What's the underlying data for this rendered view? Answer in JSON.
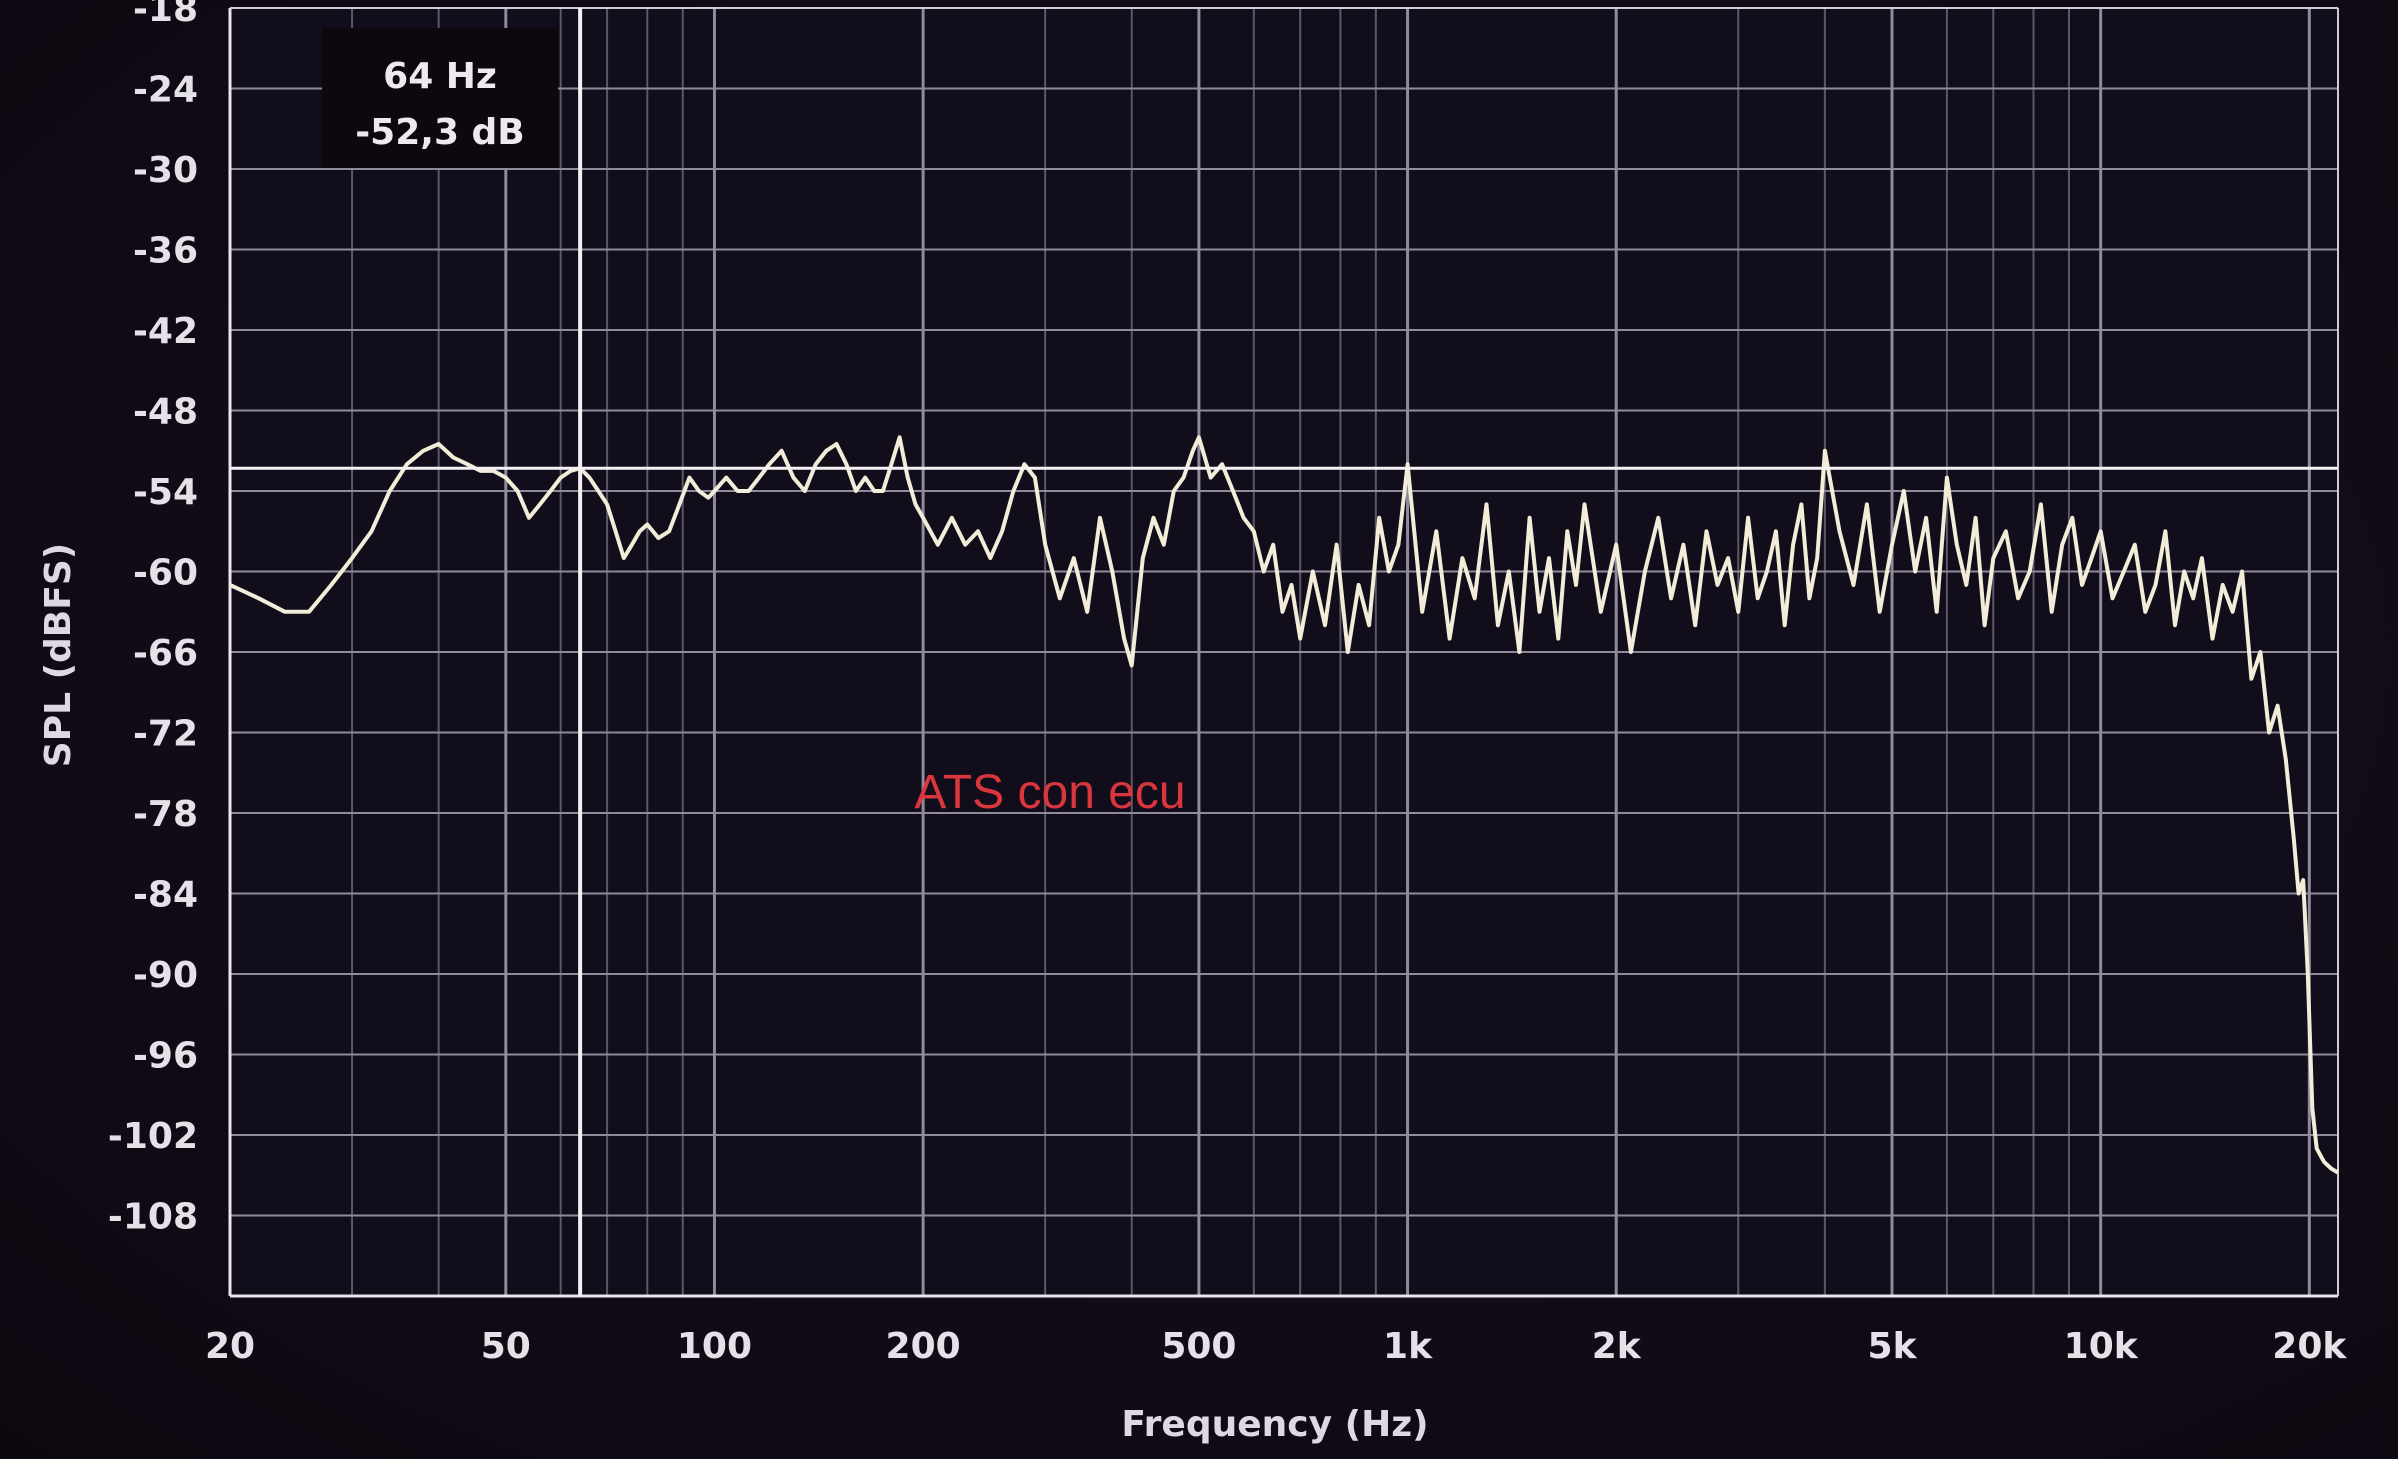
{
  "chart_data": {
    "type": "line",
    "xscale": "log",
    "xlabel": "Frequency (Hz)",
    "ylabel": "SPL (dBFS)",
    "xlim": [
      20,
      22000
    ],
    "ylim": [
      -114,
      -18
    ],
    "grid": true,
    "x_ticks": [
      {
        "value": 20,
        "label": "20"
      },
      {
        "value": 50,
        "label": "50"
      },
      {
        "value": 100,
        "label": "100"
      },
      {
        "value": 200,
        "label": "200"
      },
      {
        "value": 500,
        "label": "500"
      },
      {
        "value": 1000,
        "label": "1k"
      },
      {
        "value": 2000,
        "label": "2k"
      },
      {
        "value": 5000,
        "label": "5k"
      },
      {
        "value": 10000,
        "label": "10k"
      },
      {
        "value": 20000,
        "label": "20k"
      }
    ],
    "y_ticks": [
      -18,
      -24,
      -30,
      -36,
      -42,
      -48,
      -54,
      -60,
      -66,
      -72,
      -78,
      -84,
      -90,
      -96,
      -102,
      -108
    ],
    "annotation": "ATS con ecu",
    "cursor": {
      "freq": 64,
      "freq_label": "64 Hz",
      "level": -52.3,
      "level_label": "-52,3 dB"
    },
    "series": [
      {
        "x": [
          20,
          22,
          24,
          26,
          28,
          30,
          32,
          34,
          36,
          38,
          40,
          42,
          44,
          46,
          48,
          50,
          52,
          54,
          56,
          58,
          60,
          62,
          64,
          66,
          68,
          70,
          72,
          74,
          76,
          78,
          80,
          83,
          86,
          89,
          92,
          95,
          98,
          100,
          104,
          108,
          112,
          116,
          120,
          125,
          130,
          135,
          140,
          145,
          150,
          155,
          160,
          165,
          170,
          175,
          180,
          185,
          190,
          195,
          200,
          210,
          220,
          230,
          240,
          250,
          260,
          270,
          280,
          290,
          300,
          315,
          330,
          345,
          360,
          375,
          390,
          400,
          415,
          430,
          445,
          460,
          475,
          490,
          500,
          520,
          540,
          560,
          580,
          600,
          620,
          640,
          660,
          680,
          700,
          730,
          760,
          790,
          820,
          850,
          880,
          910,
          940,
          970,
          1000,
          1050,
          1100,
          1150,
          1200,
          1250,
          1300,
          1350,
          1400,
          1450,
          1500,
          1550,
          1600,
          1650,
          1700,
          1750,
          1800,
          1900,
          2000,
          2100,
          2200,
          2300,
          2400,
          2500,
          2600,
          2700,
          2800,
          2900,
          3000,
          3100,
          3200,
          3300,
          3400,
          3500,
          3600,
          3700,
          3800,
          3900,
          4000,
          4200,
          4400,
          4600,
          4800,
          5000,
          5200,
          5400,
          5600,
          5800,
          6000,
          6200,
          6400,
          6600,
          6800,
          7000,
          7300,
          7600,
          7900,
          8200,
          8500,
          8800,
          9100,
          9400,
          9700,
          10000,
          10400,
          10800,
          11200,
          11600,
          12000,
          12400,
          12800,
          13200,
          13600,
          14000,
          14500,
          15000,
          15500,
          16000,
          16500,
          17000,
          17500,
          18000,
          18500,
          19000,
          19300,
          19600,
          19900,
          20200,
          20500,
          21000,
          21500,
          22000
        ],
        "y": [
          -61,
          -62,
          -63,
          -63,
          -61,
          -59,
          -57,
          -54,
          -52,
          -51,
          -50.5,
          -51.5,
          -52,
          -52.5,
          -52.5,
          -53,
          -54,
          -56,
          -55,
          -54,
          -53,
          -52.5,
          -52.3,
          -53,
          -54,
          -55,
          -57,
          -59,
          -58,
          -57,
          -56.5,
          -57.5,
          -57,
          -55,
          -53,
          -54,
          -54.5,
          -54,
          -53,
          -54,
          -54,
          -53,
          -52,
          -51,
          -53,
          -54,
          -52,
          -51,
          -50.5,
          -52,
          -54,
          -53,
          -54,
          -54,
          -52,
          -50,
          -53,
          -55,
          -56,
          -58,
          -56,
          -58,
          -57,
          -59,
          -57,
          -54,
          -52,
          -53,
          -58,
          -62,
          -59,
          -63,
          -56,
          -60,
          -65,
          -67,
          -59,
          -56,
          -58,
          -54,
          -53,
          -51,
          -50,
          -53,
          -52,
          -54,
          -56,
          -57,
          -60,
          -58,
          -63,
          -61,
          -65,
          -60,
          -64,
          -58,
          -66,
          -61,
          -64,
          -56,
          -60,
          -58,
          -52,
          -63,
          -57,
          -65,
          -59,
          -62,
          -55,
          -64,
          -60,
          -66,
          -56,
          -63,
          -59,
          -65,
          -57,
          -61,
          -55,
          -63,
          -58,
          -66,
          -60,
          -56,
          -62,
          -58,
          -64,
          -57,
          -61,
          -59,
          -63,
          -56,
          -62,
          -60,
          -57,
          -64,
          -58,
          -55,
          -62,
          -59,
          -51,
          -57,
          -61,
          -55,
          -63,
          -58,
          -54,
          -60,
          -56,
          -63,
          -53,
          -58,
          -61,
          -56,
          -64,
          -59,
          -57,
          -62,
          -60,
          -55,
          -63,
          -58,
          -56,
          -61,
          -59,
          -57,
          -62,
          -60,
          -58,
          -63,
          -61,
          -57,
          -64,
          -60,
          -62,
          -59,
          -65,
          -61,
          -63,
          -60,
          -68,
          -66,
          -72,
          -70,
          -74,
          -80,
          -84,
          -83,
          -90,
          -100,
          -103,
          -104,
          -104.5,
          -104.8
        ]
      }
    ]
  }
}
